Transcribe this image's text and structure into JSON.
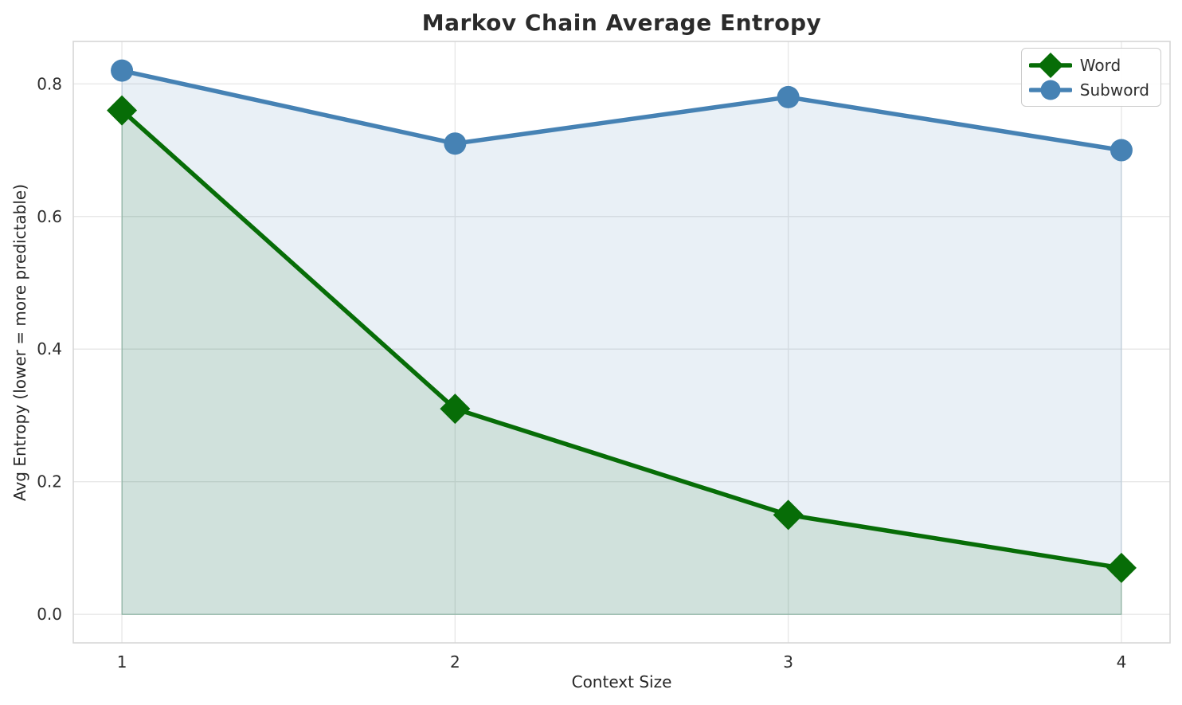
{
  "title": "Markov Chain Average Entropy",
  "chart_data": {
    "type": "line",
    "title": "Markov Chain Average Entropy",
    "xlabel": "Context Size",
    "ylabel": "Avg Entropy (lower = more predictable)",
    "x": [
      1,
      2,
      3,
      4
    ],
    "series": [
      {
        "name": "Word",
        "values": [
          0.76,
          0.31,
          0.15,
          0.07
        ],
        "color": "#076d07",
        "marker": "diamond",
        "fill_to_zero": true,
        "fill_alpha": 0.11
      },
      {
        "name": "Subword",
        "values": [
          0.82,
          0.71,
          0.78,
          0.7
        ],
        "color": "#4682b4",
        "marker": "circle",
        "fill_to_zero": true,
        "fill_alpha": 0.12
      }
    ],
    "xtick_labels": [
      "1",
      "2",
      "3",
      "4"
    ],
    "xtick_values": [
      1,
      2,
      3,
      4
    ],
    "ytick_labels": [
      "0.0",
      "0.2",
      "0.4",
      "0.6",
      "0.8"
    ],
    "ytick_values": [
      0.0,
      0.2,
      0.4,
      0.6,
      0.8
    ],
    "xlim": [
      0.854,
      4.146
    ],
    "ylim": [
      -0.043,
      0.864
    ],
    "grid": true,
    "legend_position": "upper right",
    "grid_color": "#e8e8e8",
    "spine_color": "#d4d4d4",
    "text_color": "#2e2e2e",
    "background_color": "#ffffff"
  }
}
